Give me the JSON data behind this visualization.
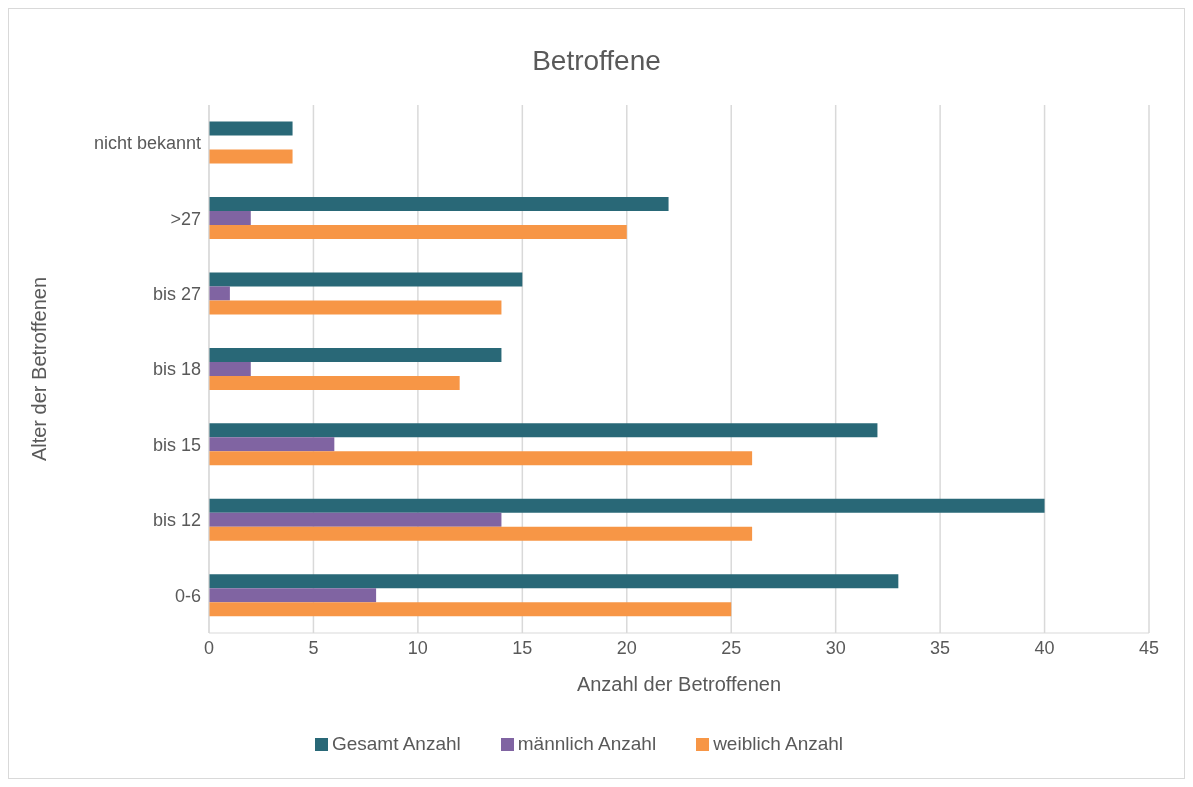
{
  "chart_data": {
    "type": "bar",
    "orientation": "horizontal",
    "title": "Betroffene",
    "xlabel": "Anzahl der Betroffenen",
    "ylabel": "Alter der Betroffenen",
    "categories": [
      "nicht bekannt",
      ">27",
      "bis 27",
      "bis 18",
      "bis 15",
      "bis 12",
      "0-6"
    ],
    "series": [
      {
        "name": "Gesamt Anzahl",
        "color": "#296877",
        "values": [
          4,
          22,
          15,
          14,
          32,
          40,
          33
        ]
      },
      {
        "name": "männlich Anzahl",
        "color": "#8064a2",
        "values": [
          0,
          2,
          1,
          2,
          6,
          14,
          8
        ]
      },
      {
        "name": "weiblich Anzahl",
        "color": "#f79646",
        "values": [
          4,
          20,
          14,
          12,
          26,
          26,
          25
        ]
      }
    ],
    "xlim": [
      0,
      45
    ],
    "xticks": [
      0,
      5,
      10,
      15,
      20,
      25,
      30,
      35,
      40,
      45
    ],
    "grid": "x",
    "legend": "bottom"
  }
}
